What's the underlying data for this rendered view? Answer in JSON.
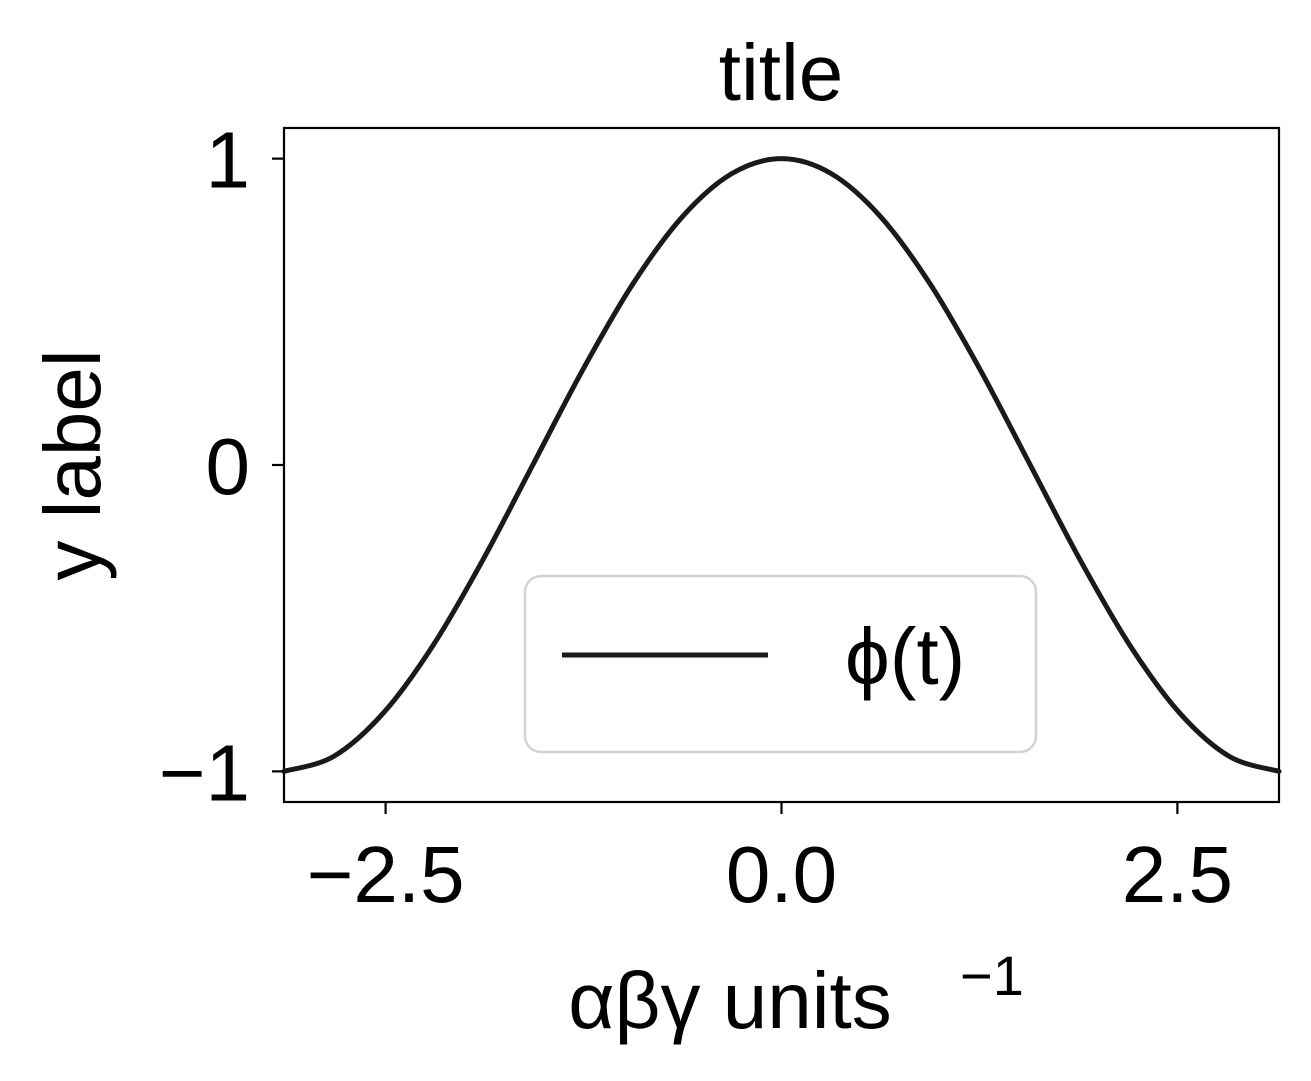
{
  "chart_data": {
    "type": "line",
    "title": "title",
    "xlabel": "αβγ units",
    "xlabel_superscript": "−1",
    "ylabel": "y label",
    "xlim": [
      -3.14159,
      3.14159
    ],
    "ylim": [
      -1.1,
      1.1
    ],
    "xticks": [
      -2.5,
      0.0,
      2.5
    ],
    "xtick_labels": [
      "−2.5",
      "0.0",
      "2.5"
    ],
    "yticks": [
      -1,
      0,
      1
    ],
    "ytick_labels": [
      "−1",
      "0",
      "1"
    ],
    "grid": false,
    "legend": {
      "placement": "lower center",
      "entries": [
        "ϕ(t)"
      ]
    },
    "series": [
      {
        "name": "ϕ(t)",
        "color": "#1a1a1a",
        "x": [
          -3.14159,
          -2.82743,
          -2.51327,
          -2.19911,
          -1.88496,
          -1.5708,
          -1.25664,
          -0.94248,
          -0.62832,
          -0.31416,
          0.0,
          0.31416,
          0.62832,
          0.94248,
          1.25664,
          1.5708,
          1.88496,
          2.19911,
          2.51327,
          2.82743,
          3.14159
        ],
        "y": [
          -1.0,
          -0.95106,
          -0.80902,
          -0.58779,
          -0.30902,
          0.0,
          0.30902,
          0.58779,
          0.80902,
          0.95106,
          1.0,
          0.95106,
          0.80902,
          0.58779,
          0.30902,
          0.0,
          -0.30902,
          -0.58779,
          -0.80902,
          -0.95106,
          -1.0
        ]
      }
    ]
  }
}
